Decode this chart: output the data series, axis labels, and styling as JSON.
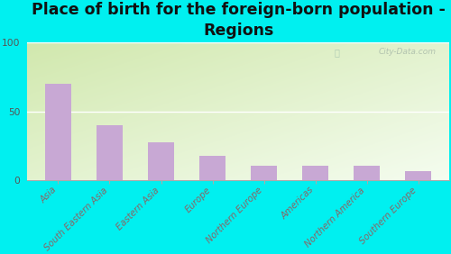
{
  "title": "Place of birth for the foreign-born population -\nRegions",
  "categories": [
    "Asia",
    "South Eastern Asia",
    "Eastern Asia",
    "Europe",
    "Northern Europe",
    "Americas",
    "Northern America",
    "Southern Europe"
  ],
  "values": [
    70,
    40,
    28,
    18,
    11,
    11,
    11,
    7
  ],
  "bar_color": "#c8a8d4",
  "ylim": [
    0,
    100
  ],
  "yticks": [
    0,
    50,
    100
  ],
  "background_outer": "#00f0f0",
  "grad_top_left": "#d4e8b0",
  "grad_bottom_right": "#f5f8f0",
  "title_fontsize": 12.5,
  "tick_fontsize": 7.2,
  "tick_color": "#886666",
  "watermark": "City-Data.com"
}
